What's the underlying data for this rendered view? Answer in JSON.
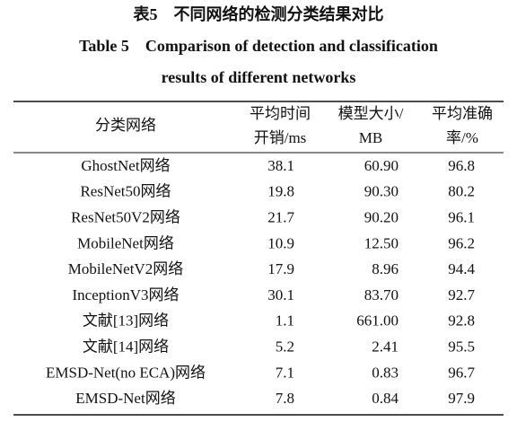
{
  "table": {
    "title_cn": "表5　不同网络的检测分类结果对比",
    "title_en": [
      "Table 5　Comparison of detection and classification",
      "results of different networks"
    ],
    "header": [
      [
        "分类网络"
      ],
      [
        "平均时间",
        "开销/ms"
      ],
      [
        "模型大小/",
        "MB"
      ],
      [
        "平均准确",
        "率/%"
      ]
    ],
    "rows": [
      [
        "GhostNet网络",
        "38.1",
        "60.90",
        "96.8"
      ],
      [
        "ResNet50网络",
        "19.8",
        "90.30",
        "80.2"
      ],
      [
        "ResNet50V2网络",
        "21.7",
        "90.20",
        "96.1"
      ],
      [
        "MobileNet网络",
        "10.9",
        "12.50",
        "96.2"
      ],
      [
        "MobileNetV2网络",
        "17.9",
        "8.96",
        "94.4"
      ],
      [
        "InceptionV3网络",
        "30.1",
        "83.70",
        "92.7"
      ],
      [
        "文献[13]网络",
        "1.1",
        "661.00",
        "92.8"
      ],
      [
        "文献[14]网络",
        "5.2",
        "2.41",
        "95.5"
      ],
      [
        "EMSD-Net(no ECA)网络",
        "7.1",
        "0.83",
        "96.7"
      ],
      [
        "EMSD-Net网络",
        "7.8",
        "0.84",
        "97.9"
      ]
    ]
  }
}
